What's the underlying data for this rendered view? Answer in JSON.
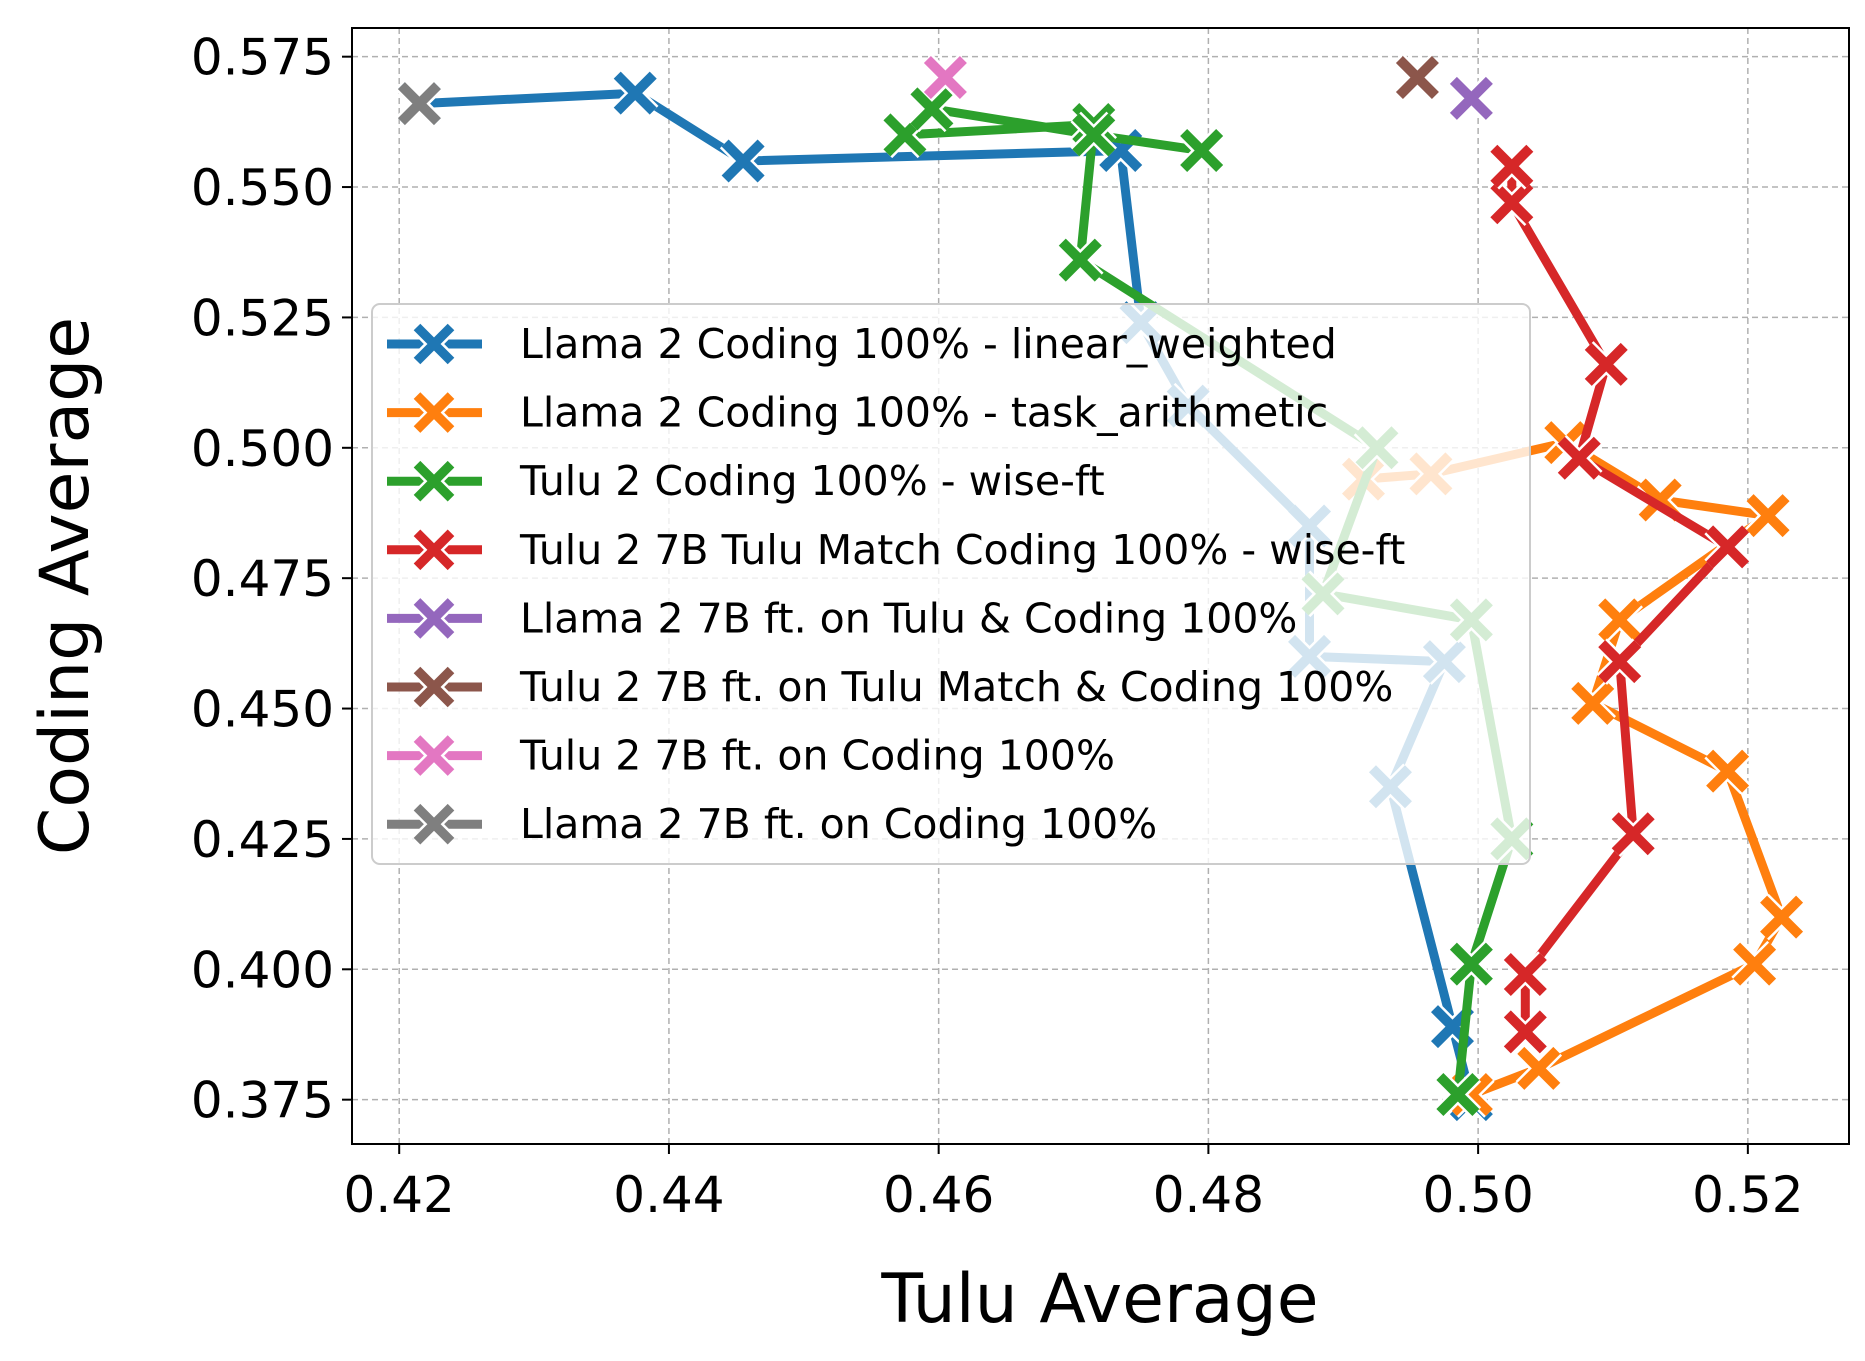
{
  "chart_data": {
    "type": "line",
    "xlabel": "Tulu Average",
    "ylabel": "Coding Average",
    "xlim": [
      0.4165,
      0.5275
    ],
    "ylim": [
      0.3665,
      0.5805
    ],
    "xticks": [
      "0.42",
      "0.44",
      "0.46",
      "0.48",
      "0.50",
      "0.52"
    ],
    "yticks": [
      "0.375",
      "0.400",
      "0.425",
      "0.450",
      "0.475",
      "0.500",
      "0.525",
      "0.550",
      "0.575"
    ],
    "grid": true,
    "legend_position": "center-left",
    "series": [
      {
        "name": "Llama 2 Coding 100% - linear_weighted",
        "color": "#1f77b4",
        "points": [
          [
            0.4995,
            0.375
          ],
          [
            0.4981,
            0.389
          ],
          [
            0.4935,
            0.435
          ],
          [
            0.4975,
            0.459
          ],
          [
            0.4875,
            0.46
          ],
          [
            0.4875,
            0.485
          ],
          [
            0.4785,
            0.508
          ],
          [
            0.475,
            0.524
          ],
          [
            0.4735,
            0.557
          ],
          [
            0.4455,
            0.555
          ],
          [
            0.4375,
            0.568
          ],
          [
            0.4215,
            0.566
          ]
        ]
      },
      {
        "name": "Llama 2 Coding 100% - task_arithmetic",
        "color": "#ff7f0e",
        "points": [
          [
            0.4995,
            0.376
          ],
          [
            0.5045,
            0.381
          ],
          [
            0.5205,
            0.401
          ],
          [
            0.5225,
            0.41
          ],
          [
            0.5185,
            0.438
          ],
          [
            0.5085,
            0.451
          ],
          [
            0.5105,
            0.467
          ],
          [
            0.5215,
            0.487
          ],
          [
            0.5135,
            0.49
          ],
          [
            0.5065,
            0.501
          ],
          [
            0.4965,
            0.495
          ],
          [
            0.4915,
            0.494
          ]
        ]
      },
      {
        "name": "Tulu 2 Coding 100% - wise-ft",
        "color": "#2ca02c",
        "points": [
          [
            0.4985,
            0.376
          ],
          [
            0.4995,
            0.401
          ],
          [
            0.5025,
            0.425
          ],
          [
            0.4995,
            0.467
          ],
          [
            0.4885,
            0.472
          ],
          [
            0.4925,
            0.5
          ],
          [
            0.4705,
            0.536
          ],
          [
            0.4715,
            0.562
          ],
          [
            0.4575,
            0.56
          ],
          [
            0.4595,
            0.565
          ],
          [
            0.4715,
            0.56
          ],
          [
            0.4795,
            0.557
          ]
        ]
      },
      {
        "name": "Tulu 2 7B Tulu Match Coding 100% - wise-ft",
        "color": "#d62728",
        "points": [
          [
            0.5035,
            0.388
          ],
          [
            0.5035,
            0.399
          ],
          [
            0.5115,
            0.426
          ],
          [
            0.5105,
            0.459
          ],
          [
            0.5185,
            0.481
          ],
          [
            0.5075,
            0.498
          ],
          [
            0.5095,
            0.516
          ],
          [
            0.5025,
            0.547
          ],
          [
            0.5025,
            0.554
          ]
        ]
      },
      {
        "name": "Llama 2 7B ft. on Tulu & Coding 100%",
        "color": "#9467bd",
        "points": [
          [
            0.4995,
            0.567
          ]
        ]
      },
      {
        "name": "Tulu 2 7B ft. on Tulu Match & Coding 100%",
        "color": "#8c564b",
        "points": [
          [
            0.4955,
            0.571
          ]
        ]
      },
      {
        "name": "Tulu 2 7B ft. on Coding 100%",
        "color": "#e377c2",
        "points": [
          [
            0.4605,
            0.571
          ]
        ]
      },
      {
        "name": "Llama 2 7B ft. on Coding 100%",
        "color": "#7f7f7f",
        "points": [
          [
            0.4215,
            0.566
          ]
        ]
      }
    ]
  }
}
